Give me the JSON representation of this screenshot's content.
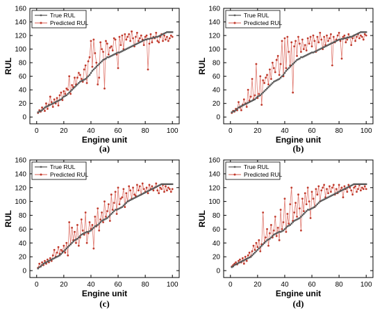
{
  "chart_data": [
    {
      "panel_label": "(a)",
      "type": "line",
      "xlabel": "Engine unit",
      "ylabel": "RUL",
      "xlim": [
        -5,
        105
      ],
      "ylim": [
        -10,
        160
      ],
      "xticks": [
        0,
        20,
        40,
        60,
        80,
        100
      ],
      "yticks": [
        0,
        20,
        40,
        60,
        80,
        100,
        120,
        140,
        160
      ],
      "legend_position": "top-left",
      "series": [
        {
          "name": "True RUL",
          "color": "#595959",
          "marker": "square",
          "values": [
            7,
            8,
            9,
            10,
            12,
            14,
            15,
            16,
            17,
            18,
            19,
            20,
            21,
            22,
            23,
            24,
            25,
            26,
            28,
            30,
            31,
            32,
            34,
            36,
            38,
            40,
            42,
            44,
            46,
            48,
            50,
            52,
            53,
            54,
            55,
            56,
            58,
            60,
            62,
            65,
            68,
            70,
            72,
            74,
            76,
            78,
            80,
            82,
            84,
            85,
            86,
            88,
            88,
            89,
            90,
            91,
            92,
            93,
            94,
            95,
            95,
            96,
            97,
            98,
            99,
            100,
            101,
            102,
            103,
            104,
            105,
            106,
            107,
            108,
            109,
            110,
            111,
            112,
            113,
            114,
            114,
            115,
            115,
            116,
            116,
            117,
            117,
            118,
            118,
            119,
            120,
            121,
            122,
            123,
            124,
            125,
            125,
            125,
            125,
            125
          ]
        },
        {
          "name": "Predicted RUL",
          "color": "#e07a70",
          "marker": "circle",
          "values": [
            6,
            10,
            8,
            14,
            12,
            9,
            20,
            12,
            18,
            30,
            22,
            15,
            26,
            20,
            28,
            17,
            32,
            36,
            25,
            38,
            34,
            42,
            40,
            60,
            34,
            47,
            44,
            58,
            48,
            58,
            65,
            62,
            56,
            52,
            70,
            76,
            50,
            82,
            88,
            112,
            74,
            114,
            94,
            80,
            48,
            58,
            110,
            100,
            96,
            42,
            112,
            108,
            92,
            102,
            104,
            98,
            116,
            114,
            92,
            72,
            118,
            106,
            120,
            100,
            122,
            114,
            118,
            122,
            112,
            126,
            116,
            104,
            118,
            124,
            112,
            116,
            120,
            114,
            106,
            118,
            120,
            70,
            108,
            122,
            110,
            118,
            116,
            124,
            112,
            110,
            118,
            122,
            112,
            120,
            114,
            118,
            112,
            116,
            120,
            118
          ]
        }
      ]
    },
    {
      "panel_label": "(b)",
      "type": "line",
      "xlabel": "Engine unit",
      "ylabel": "RUL",
      "xlim": [
        -5,
        105
      ],
      "ylim": [
        -10,
        160
      ],
      "xticks": [
        0,
        20,
        40,
        60,
        80,
        100
      ],
      "yticks": [
        0,
        20,
        40,
        60,
        80,
        100,
        120,
        140,
        160
      ],
      "legend_position": "top-left",
      "series": [
        {
          "name": "True RUL",
          "color": "#595959",
          "marker": "square",
          "values": [
            7,
            8,
            9,
            10,
            12,
            14,
            15,
            16,
            17,
            18,
            19,
            20,
            21,
            22,
            23,
            24,
            25,
            26,
            28,
            30,
            31,
            32,
            34,
            36,
            38,
            40,
            42,
            44,
            46,
            48,
            50,
            52,
            53,
            54,
            55,
            56,
            58,
            60,
            62,
            65,
            68,
            70,
            72,
            74,
            76,
            78,
            80,
            82,
            84,
            85,
            86,
            88,
            88,
            89,
            90,
            91,
            92,
            93,
            94,
            95,
            95,
            96,
            97,
            98,
            99,
            100,
            101,
            102,
            103,
            104,
            105,
            106,
            107,
            108,
            109,
            110,
            111,
            112,
            113,
            114,
            114,
            115,
            115,
            116,
            116,
            117,
            117,
            118,
            118,
            119,
            120,
            121,
            122,
            123,
            124,
            125,
            125,
            125,
            125,
            125
          ]
        },
        {
          "name": "Predicted RUL",
          "color": "#e07a70",
          "marker": "circle",
          "values": [
            6,
            9,
            8,
            12,
            10,
            22,
            14,
            10,
            18,
            26,
            20,
            15,
            40,
            24,
            30,
            56,
            26,
            32,
            78,
            28,
            34,
            60,
            18,
            54,
            50,
            58,
            62,
            48,
            70,
            56,
            80,
            72,
            66,
            84,
            90,
            62,
            78,
            112,
            60,
            116,
            72,
            118,
            96,
            76,
            110,
            36,
            104,
            112,
            90,
            118,
            108,
            96,
            114,
            100,
            106,
            98,
            116,
            108,
            118,
            104,
            120,
            112,
            96,
            118,
            110,
            124,
            114,
            100,
            118,
            106,
            120,
            112,
            116,
            122,
            76,
            118,
            110,
            114,
            120,
            124,
            112,
            86,
            118,
            120,
            110,
            114,
            122,
            118,
            106,
            116,
            120,
            112,
            118,
            122,
            116,
            120,
            118,
            114,
            122,
            120
          ]
        }
      ]
    },
    {
      "panel_label": "(c)",
      "type": "line",
      "xlabel": "Engine unit",
      "ylabel": "RUL",
      "xlim": [
        -5,
        105
      ],
      "ylim": [
        -10,
        160
      ],
      "xticks": [
        0,
        20,
        40,
        60,
        80,
        100
      ],
      "yticks": [
        0,
        20,
        40,
        60,
        80,
        100,
        120,
        140,
        160
      ],
      "legend_position": "top-left",
      "series": [
        {
          "name": "True RUL",
          "color": "#595959",
          "marker": "square",
          "values": [
            3,
            5,
            6,
            8,
            10,
            11,
            12,
            13,
            14,
            15,
            16,
            17,
            18,
            19,
            20,
            21,
            22,
            24,
            26,
            28,
            30,
            32,
            34,
            36,
            38,
            40,
            42,
            44,
            45,
            46,
            48,
            50,
            52,
            53,
            54,
            55,
            56,
            56,
            57,
            58,
            60,
            62,
            64,
            65,
            66,
            68,
            70,
            72,
            73,
            74,
            75,
            76,
            78,
            80,
            82,
            84,
            86,
            88,
            88,
            89,
            90,
            91,
            92,
            94,
            96,
            98,
            100,
            101,
            102,
            103,
            104,
            105,
            106,
            107,
            108,
            109,
            110,
            111,
            112,
            113,
            114,
            115,
            116,
            117,
            118,
            119,
            120,
            121,
            122,
            123,
            124,
            125,
            125,
            125,
            125,
            125,
            125,
            125,
            125,
            125
          ]
        },
        {
          "name": "Predicted RUL",
          "color": "#e07a70",
          "marker": "circle",
          "values": [
            4,
            10,
            6,
            12,
            8,
            14,
            10,
            16,
            12,
            18,
            14,
            22,
            30,
            20,
            26,
            34,
            24,
            30,
            28,
            36,
            26,
            40,
            22,
            70,
            38,
            62,
            44,
            56,
            40,
            66,
            36,
            48,
            74,
            58,
            52,
            84,
            40,
            54,
            70,
            60,
            66,
            32,
            78,
            64,
            90,
            58,
            74,
            84,
            70,
            100,
            78,
            86,
            96,
            72,
            110,
            88,
            98,
            114,
            82,
            120,
            96,
            104,
            106,
            118,
            92,
            112,
            100,
            122,
            116,
            104,
            120,
            110,
            108,
            124,
            116,
            122,
            110,
            126,
            118,
            114,
            120,
            112,
            124,
            118,
            122,
            116,
            120,
            126,
            116,
            112,
            120,
            118,
            124,
            114,
            122,
            116,
            120,
            118,
            114,
            118
          ]
        }
      ]
    },
    {
      "panel_label": "(d)",
      "type": "line",
      "xlabel": "Engine unit",
      "ylabel": "RUL",
      "xlim": [
        -5,
        105
      ],
      "ylim": [
        -10,
        160
      ],
      "xticks": [
        0,
        20,
        40,
        60,
        80,
        100
      ],
      "yticks": [
        0,
        20,
        40,
        60,
        80,
        100,
        120,
        140,
        160
      ],
      "legend_position": "top-left",
      "series": [
        {
          "name": "True RUL",
          "color": "#595959",
          "marker": "square",
          "values": [
            5,
            6,
            8,
            9,
            10,
            11,
            12,
            13,
            14,
            15,
            16,
            17,
            18,
            19,
            20,
            22,
            24,
            26,
            28,
            30,
            32,
            34,
            36,
            38,
            40,
            42,
            44,
            45,
            46,
            48,
            50,
            52,
            53,
            54,
            55,
            56,
            56,
            57,
            58,
            60,
            62,
            64,
            65,
            66,
            68,
            70,
            72,
            73,
            74,
            75,
            76,
            78,
            80,
            82,
            84,
            86,
            88,
            88,
            89,
            90,
            91,
            92,
            94,
            96,
            98,
            100,
            101,
            102,
            103,
            104,
            105,
            106,
            107,
            108,
            109,
            110,
            111,
            112,
            113,
            114,
            115,
            116,
            117,
            118,
            119,
            120,
            121,
            122,
            123,
            124,
            125,
            125,
            125,
            125,
            125,
            125,
            125,
            125,
            125,
            125
          ]
        },
        {
          "name": "Predicted RUL",
          "color": "#e07a70",
          "marker": "circle",
          "values": [
            6,
            8,
            10,
            12,
            9,
            14,
            16,
            12,
            18,
            10,
            20,
            14,
            22,
            26,
            20,
            28,
            36,
            30,
            40,
            34,
            44,
            28,
            38,
            84,
            40,
            48,
            60,
            36,
            54,
            66,
            48,
            58,
            78,
            50,
            62,
            44,
            88,
            60,
            70,
            104,
            56,
            82,
            68,
            96,
            120,
            72,
            84,
            98,
            78,
            110,
            90,
            58,
            104,
            86,
            112,
            96,
            120,
            100,
            76,
            114,
            104,
            92,
            118,
            110,
            122,
            100,
            116,
            120,
            124,
            106,
            118,
            112,
            122,
            114,
            120,
            124,
            110,
            118,
            112,
            124,
            116,
            120,
            106,
            122,
            118,
            114,
            124,
            120,
            116,
            110,
            120,
            122,
            114,
            118,
            124,
            116,
            120,
            118,
            122,
            118
          ]
        }
      ]
    }
  ]
}
